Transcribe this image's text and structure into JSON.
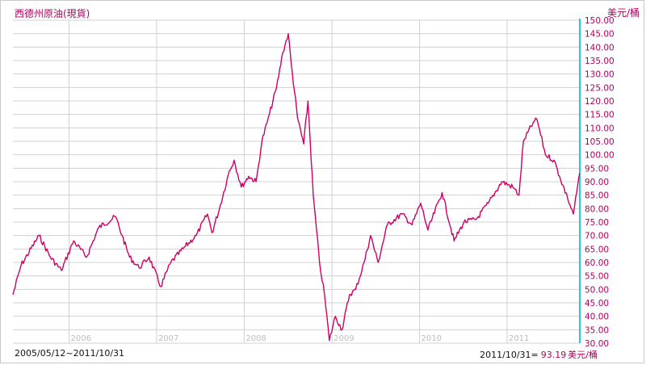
{
  "chart_data": {
    "type": "line",
    "title": "西德州原油(現貨)",
    "ylabel": "美元/桶",
    "date_range_label": "2005/05/12~2011/10/31",
    "last_point": {
      "date_label": "2011/10/31=",
      "value_label": "93.19",
      "unit_label": "美元/桶"
    },
    "ylim": [
      30,
      150
    ],
    "y_ticks": [
      "150.00",
      "145.00",
      "140.00",
      "135.00",
      "130.00",
      "125.00",
      "120.00",
      "115.00",
      "110.00",
      "105.00",
      "100.00",
      "95.00",
      "90.00",
      "85.00",
      "80.00",
      "75.00",
      "70.00",
      "65.00",
      "60.00",
      "55.00",
      "50.00",
      "45.00",
      "40.00",
      "35.00",
      "30.00"
    ],
    "x_range": [
      "2005-05-12",
      "2011-10-31"
    ],
    "x_ticks": [
      {
        "label": "2006",
        "date": "2006-01-01"
      },
      {
        "label": "2007",
        "date": "2007-01-01"
      },
      {
        "label": "2008",
        "date": "2008-01-01"
      },
      {
        "label": "2009",
        "date": "2009-01-01"
      },
      {
        "label": "2010",
        "date": "2010-01-01"
      },
      {
        "label": "2011",
        "date": "2011-01-01"
      }
    ],
    "grid": true,
    "colors": {
      "line": "#cc0066",
      "grid": "#d0d0d0",
      "axis": "#2ec6d6",
      "ytick": "#b0005f"
    },
    "series": [
      {
        "x": [
          "2005-05-12",
          "2005-06-15",
          "2005-08-29",
          "2005-10-15",
          "2005-11-30",
          "2006-01-20",
          "2006-03-15",
          "2006-05-05",
          "2006-07-14",
          "2006-08-10",
          "2006-09-10",
          "2006-10-20",
          "2006-12-01",
          "2007-01-18",
          "2007-03-01",
          "2007-05-01",
          "2007-06-15",
          "2007-08-01",
          "2007-08-20",
          "2007-09-20",
          "2007-10-31",
          "2007-11-20",
          "2007-12-20",
          "2008-01-20",
          "2008-02-20",
          "2008-03-15",
          "2008-04-15",
          "2008-05-15",
          "2008-06-10",
          "2008-07-03",
          "2008-07-15",
          "2008-08-10",
          "2008-09-05",
          "2008-09-23",
          "2008-10-15",
          "2008-11-10",
          "2008-12-01",
          "2008-12-21",
          "2009-01-15",
          "2009-02-12",
          "2009-03-15",
          "2009-04-10",
          "2009-05-15",
          "2009-06-11",
          "2009-07-12",
          "2009-08-20",
          "2009-10-20",
          "2009-12-01",
          "2010-01-06",
          "2010-02-05",
          "2010-04-05",
          "2010-05-25",
          "2010-07-05",
          "2010-08-25",
          "2010-10-15",
          "2010-12-10",
          "2011-01-25",
          "2011-02-20",
          "2011-03-10",
          "2011-04-20",
          "2011-05-06",
          "2011-06-10",
          "2011-07-15",
          "2011-08-08",
          "2011-09-10",
          "2011-10-04",
          "2011-10-31"
        ],
        "y": [
          48,
          59,
          70,
          62,
          57,
          68,
          62,
          73,
          77,
          70,
          62,
          58,
          62,
          51,
          60,
          66,
          70,
          78,
          71,
          80,
          94,
          98,
          88,
          92,
          90,
          105,
          115,
          125,
          138,
          145,
          134,
          114,
          104,
          120,
          85,
          60,
          48,
          31,
          40,
          35,
          48,
          50,
          60,
          70,
          60,
          74,
          78,
          74,
          82,
          72,
          86,
          68,
          75,
          76,
          82,
          90,
          88,
          85,
          105,
          112,
          113,
          100,
          98,
          92,
          84,
          78,
          93.19
        ]
      }
    ]
  }
}
